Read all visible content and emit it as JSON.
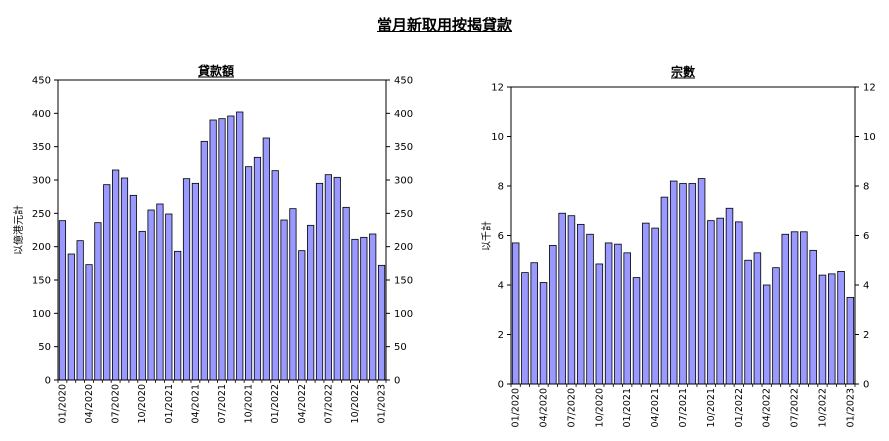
{
  "title": "當月新取用按揭貸款",
  "chart_data": [
    {
      "type": "bar",
      "title": "貸款額",
      "ylabel": "以億港元計",
      "ylim": [
        0,
        450
      ],
      "yticks": [
        0,
        50,
        100,
        150,
        200,
        250,
        300,
        350,
        400,
        450
      ],
      "right_axis": true,
      "grid": false,
      "bar_color": "#9999ff",
      "categories": [
        "01/2020",
        "02/2020",
        "03/2020",
        "04/2020",
        "05/2020",
        "06/2020",
        "07/2020",
        "08/2020",
        "09/2020",
        "10/2020",
        "11/2020",
        "12/2020",
        "01/2021",
        "02/2021",
        "03/2021",
        "04/2021",
        "05/2021",
        "06/2021",
        "07/2021",
        "08/2021",
        "09/2021",
        "10/2021",
        "11/2021",
        "12/2021",
        "01/2022",
        "02/2022",
        "03/2022",
        "04/2022",
        "05/2022",
        "06/2022",
        "07/2022",
        "08/2022",
        "09/2022",
        "10/2022",
        "11/2022",
        "12/2022",
        "01/2023"
      ],
      "x_tick_labels": [
        "01/2020",
        "04/2020",
        "07/2020",
        "10/2020",
        "01/2021",
        "04/2021",
        "07/2021",
        "10/2021",
        "01/2022",
        "04/2022",
        "07/2022",
        "10/2022",
        "01/2023"
      ],
      "values": [
        239,
        189,
        209,
        173,
        236,
        293,
        315,
        303,
        277,
        223,
        255,
        264,
        249,
        193,
        302,
        295,
        358,
        390,
        392,
        396,
        402,
        320,
        334,
        363,
        314,
        240,
        257,
        194,
        232,
        295,
        308,
        304,
        259,
        211,
        214,
        219,
        172
      ]
    },
    {
      "type": "bar",
      "title": "宗數",
      "ylabel": "以千計",
      "ylim": [
        0,
        12
      ],
      "yticks": [
        0,
        2,
        4,
        6,
        8,
        10,
        12
      ],
      "right_axis": true,
      "grid": false,
      "bar_color": "#9999ff",
      "categories": [
        "01/2020",
        "02/2020",
        "03/2020",
        "04/2020",
        "05/2020",
        "06/2020",
        "07/2020",
        "08/2020",
        "09/2020",
        "10/2020",
        "11/2020",
        "12/2020",
        "01/2021",
        "02/2021",
        "03/2021",
        "04/2021",
        "05/2021",
        "06/2021",
        "07/2021",
        "08/2021",
        "09/2021",
        "10/2021",
        "11/2021",
        "12/2021",
        "01/2022",
        "02/2022",
        "03/2022",
        "04/2022",
        "05/2022",
        "06/2022",
        "07/2022",
        "08/2022",
        "09/2022",
        "10/2022",
        "11/2022",
        "12/2022",
        "01/2023"
      ],
      "x_tick_labels": [
        "01/2020",
        "04/2020",
        "07/2020",
        "10/2020",
        "01/2021",
        "04/2021",
        "07/2021",
        "10/2021",
        "01/2022",
        "04/2022",
        "07/2022",
        "10/2022",
        "01/2023"
      ],
      "values": [
        5.7,
        4.5,
        4.9,
        4.1,
        5.6,
        6.9,
        6.8,
        6.45,
        6.05,
        4.85,
        5.7,
        5.65,
        5.3,
        4.3,
        6.5,
        6.3,
        7.55,
        8.2,
        8.1,
        8.1,
        8.3,
        6.6,
        6.7,
        7.1,
        6.55,
        5.0,
        5.3,
        4.0,
        4.7,
        6.05,
        6.15,
        6.15,
        5.4,
        4.4,
        4.45,
        4.55,
        3.5
      ]
    }
  ]
}
